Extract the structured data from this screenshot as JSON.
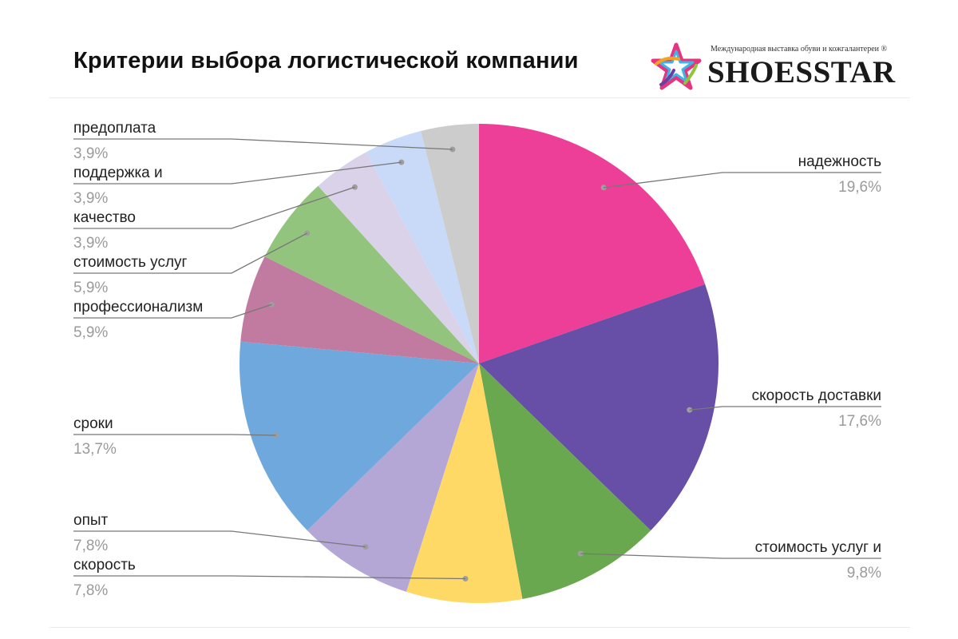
{
  "header": {
    "title": "Критерии выбора логистической компании"
  },
  "logo": {
    "tagline": "Международная выставка обуви и кожгалантереи ®",
    "wordmark": "SHOESSTAR",
    "star_colors": [
      "#e8347f",
      "#f6a21e",
      "#3bb6e8",
      "#6a3fa0",
      "#8cc63f"
    ]
  },
  "chart_data": {
    "type": "pie",
    "title": "Критерии выбора логистической компании",
    "slices": [
      {
        "label": "надежность",
        "value": 19.6,
        "value_label": "19,6%",
        "color": "#ee3f98"
      },
      {
        "label": "скорость доставки",
        "value": 17.6,
        "value_label": "17,6%",
        "color": "#674ea7"
      },
      {
        "label": "стоимость услуг и",
        "value": 9.8,
        "value_label": "9,8%",
        "color": "#6aa84f"
      },
      {
        "label": "скорость",
        "value": 7.8,
        "value_label": "7,8%",
        "color": "#ffd966"
      },
      {
        "label": "опыт",
        "value": 7.8,
        "value_label": "7,8%",
        "color": "#b4a7d6"
      },
      {
        "label": "сроки",
        "value": 13.7,
        "value_label": "13,7%",
        "color": "#6fa8dc"
      },
      {
        "label": "профессионализм",
        "value": 5.9,
        "value_label": "5,9%",
        "color": "#c27ba0"
      },
      {
        "label": "стоимость услуг",
        "value": 5.9,
        "value_label": "5,9%",
        "color": "#93c47d"
      },
      {
        "label": "качество",
        "value": 3.9,
        "value_label": "3,9%",
        "color": "#d9d2e9"
      },
      {
        "label": "поддержка и",
        "value": 3.9,
        "value_label": "3,9%",
        "color": "#c9daf8"
      },
      {
        "label": "предоплата",
        "value": 3.9,
        "value_label": "3,9%",
        "color": "#cccccc"
      }
    ],
    "start_angle_deg": 0,
    "direction": "clockwise",
    "legend": "none"
  }
}
